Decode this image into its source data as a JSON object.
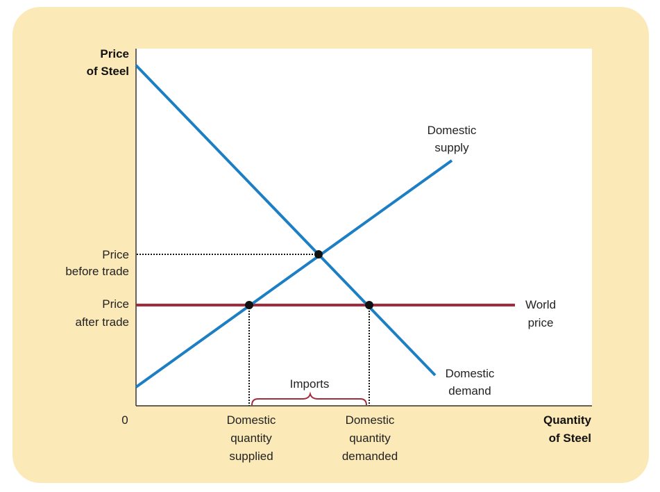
{
  "axes": {
    "y_title": [
      "Price",
      "of Steel"
    ],
    "x_title": [
      "Quantity",
      "of Steel"
    ],
    "origin": "0"
  },
  "price_labels": {
    "before": [
      "Price",
      "before trade"
    ],
    "after": [
      "Price",
      "after trade"
    ]
  },
  "quantity_labels": {
    "supplied": [
      "Domestic",
      "quantity",
      "supplied"
    ],
    "demanded": [
      "Domestic",
      "quantity",
      "demanded"
    ]
  },
  "curves": {
    "supply": [
      "Domestic",
      "supply"
    ],
    "demand": [
      "Domestic",
      "demand"
    ],
    "world": [
      "World",
      "price"
    ]
  },
  "imports_label": "Imports",
  "colors": {
    "panel": "#fbe9b7",
    "curve": "#1c7fc4",
    "world_price": "#a32c3c",
    "brace": "#a32c3c"
  }
}
